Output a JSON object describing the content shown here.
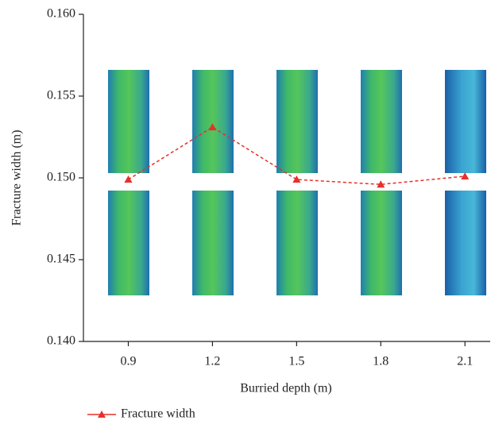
{
  "chart_data": {
    "type": "line",
    "x_label": "Burried depth (m)",
    "y_label": "Fracture width (m)",
    "x": [
      0.9,
      1.2,
      1.5,
      1.8,
      2.1
    ],
    "series": [
      {
        "name": "Fracture width",
        "color": "#e8302a",
        "values": [
          0.1499,
          0.1531,
          0.1499,
          0.1496,
          0.1501
        ]
      }
    ],
    "xlim": [
      0.74,
      2.19
    ],
    "xticks": [
      0.9,
      1.2,
      1.5,
      1.8,
      2.1
    ],
    "ylim": [
      0.14,
      0.16
    ],
    "yticks": [
      {
        "value": 0.14,
        "label": "0.140"
      },
      0.145,
      {
        "value": 0.15,
        "label": "0.150"
      },
      0.155,
      {
        "value": 0.16,
        "label": "0.160"
      }
    ],
    "grid": false,
    "legend": "bottom"
  }
}
